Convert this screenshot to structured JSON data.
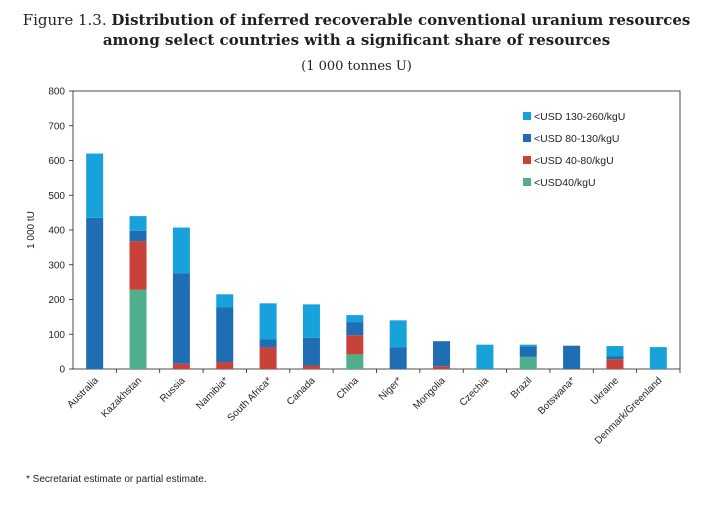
{
  "figure": {
    "label": "Figure 1.3.",
    "title_line1": "Distribution of inferred recoverable conventional uranium resources",
    "title_line2": "among select countries with a significant share of resources",
    "subtitle": "(1 000 tonnes U)",
    "footnote": "* Secretariat estimate or partial estimate."
  },
  "chart_data": {
    "type": "bar",
    "stacked": true,
    "title": "Distribution of inferred recoverable conventional uranium resources among select countries with a significant share of resources",
    "ylabel": "1 000 tU",
    "xlabel": "",
    "ylim": [
      0,
      800
    ],
    "yticks": [
      0,
      100,
      200,
      300,
      400,
      500,
      600,
      700,
      800
    ],
    "grid": false,
    "legend_position": "top-right",
    "categories": [
      "Australia",
      "Kazakhstan",
      "Russia",
      "Namibia*",
      "South Africa*",
      "Canada",
      "China",
      "Niger*",
      "Mongolia",
      "Czechia",
      "Brazil",
      "Botswana*",
      "Ukraine",
      "Denmark/Greenland"
    ],
    "series": [
      {
        "name": "<USD40/kgU",
        "color": "#4fae8b",
        "values": [
          0,
          228,
          0,
          0,
          0,
          0,
          42,
          0,
          0,
          0,
          35,
          0,
          0,
          0
        ]
      },
      {
        "name": "<USD 40-80/kgU",
        "color": "#c8423a",
        "values": [
          0,
          140,
          15,
          20,
          62,
          10,
          55,
          0,
          8,
          0,
          0,
          0,
          28,
          0
        ]
      },
      {
        "name": "<USD 80-130/kgU",
        "color": "#1f6db2",
        "values": [
          435,
          30,
          260,
          157,
          23,
          80,
          38,
          62,
          72,
          0,
          30,
          67,
          8,
          0
        ]
      },
      {
        "name": "<USD 130-260/kgU",
        "color": "#17a2dc",
        "values": [
          185,
          42,
          132,
          38,
          104,
          96,
          20,
          78,
          0,
          70,
          5,
          0,
          30,
          63
        ]
      }
    ]
  }
}
